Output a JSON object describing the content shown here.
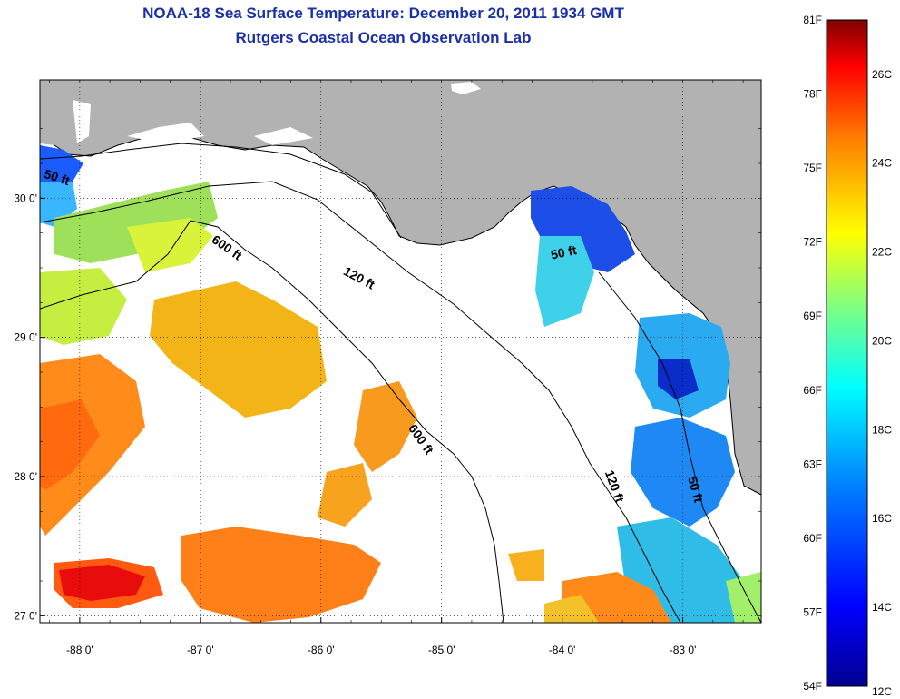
{
  "title": "NOAA-18 Sea Surface Temperature:  December 20, 2011 1934 GMT",
  "subtitle": "Rutgers Coastal Ocean Observation Lab",
  "map": {
    "lon_range": [
      -88.33,
      -82.35
    ],
    "lat_range": [
      26.95,
      30.85
    ],
    "lon_ticks": [
      {
        "value": -88,
        "label": "-88 0'"
      },
      {
        "value": -87,
        "label": "-87 0'"
      },
      {
        "value": -86,
        "label": "-86 0'"
      },
      {
        "value": -85,
        "label": "-85 0'"
      },
      {
        "value": -84,
        "label": "-84 0'"
      },
      {
        "value": -83,
        "label": "-83 0'"
      }
    ],
    "lat_ticks": [
      {
        "value": 30,
        "label": "30 0'"
      },
      {
        "value": 29,
        "label": "29 0'"
      },
      {
        "value": 28,
        "label": "28 0'"
      },
      {
        "value": 27,
        "label": "27 0'"
      }
    ],
    "land_color": "#b2b2b2",
    "nodata_color": "#ffffff",
    "contours": [
      {
        "label": "50 ft",
        "lon": -88.2,
        "lat": 30.12,
        "rotate": 18
      },
      {
        "label": "600 ft",
        "lon": -86.8,
        "lat": 29.62,
        "rotate": 35
      },
      {
        "label": "120 ft",
        "lon": -85.7,
        "lat": 29.4,
        "rotate": 28
      },
      {
        "label": "600 ft",
        "lon": -85.2,
        "lat": 28.25,
        "rotate": 55
      },
      {
        "label": "50 ft",
        "lon": -83.98,
        "lat": 29.58,
        "rotate": -12
      },
      {
        "label": "120 ft",
        "lon": -83.6,
        "lat": 27.92,
        "rotate": 70
      },
      {
        "label": "50 ft",
        "lon": -82.93,
        "lat": 27.9,
        "rotate": 75
      }
    ]
  },
  "colorbar": {
    "fahrenheit_labels": [
      "81F",
      "78F",
      "75F",
      "72F",
      "69F",
      "66F",
      "63F",
      "60F",
      "57F",
      "54F"
    ],
    "celsius_labels": [
      "26C",
      "24C",
      "22C",
      "20C",
      "18C",
      "16C",
      "14C",
      "12C"
    ],
    "colors": [
      "#00008f",
      "#0000ff",
      "#0080ff",
      "#00ffff",
      "#80ff80",
      "#ffff00",
      "#ff8000",
      "#ff0000",
      "#800000"
    ]
  }
}
